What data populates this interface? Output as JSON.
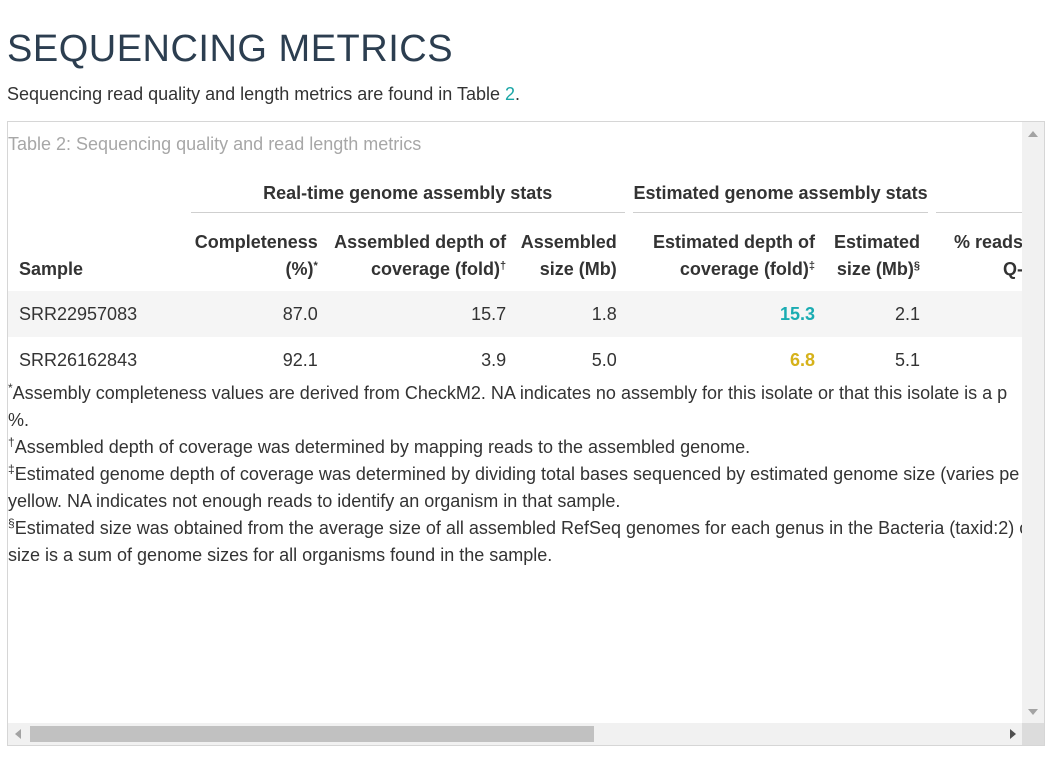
{
  "page": {
    "title": "SEQUENCING METRICS",
    "intro_prefix": "Sequencing read quality and length metrics are found in Table ",
    "intro_ref": "2",
    "intro_suffix": "."
  },
  "table": {
    "caption": "Table 2: Sequencing quality and read length metrics",
    "groups": {
      "realtime": "Real-time genome assembly stats",
      "estimated": "Estimated genome assembly stats"
    },
    "headers": {
      "sample": "Sample",
      "completeness_l1": "Completeness",
      "completeness_l2": "(%)",
      "completeness_mark": "*",
      "assembled_depth_l1": "Assembled depth of",
      "assembled_depth_l2": "coverage (fold)",
      "assembled_depth_mark": "†",
      "assembled_size_l1": "Assembled",
      "assembled_size_l2": "size (Mb)",
      "est_depth_l1": "Estimated depth of",
      "est_depth_l2": "coverage (fold)",
      "est_depth_mark": "‡",
      "est_size_l1": "Estimated",
      "est_size_l2": "size (Mb)",
      "est_size_mark": "§",
      "reads_l1": "% reads",
      "reads_l2": "Q-"
    },
    "rows": [
      {
        "sample": "SRR22957083",
        "completeness": "87.0",
        "assembled_depth": "15.7",
        "assembled_size": "1.8",
        "est_depth": "15.3",
        "est_size": "2.1"
      },
      {
        "sample": "SRR26162843",
        "completeness": "92.1",
        "assembled_depth": "3.9",
        "assembled_size": "5.0",
        "est_depth": "6.8",
        "est_size": "5.1"
      }
    ],
    "highlight_colors": {
      "teal": "#1aacb2",
      "yellow": "#d6b21a"
    }
  },
  "notes": {
    "n1_mark": "*",
    "n1_line1": "Assembly completeness values are derived from CheckM2. NA indicates no assembly for this isolate or that this isolate is a p",
    "n1_line2": "%.",
    "n2_mark": "†",
    "n2_line1": "Assembled depth of coverage was determined by mapping reads to the assembled genome.",
    "n3_mark": "‡",
    "n3_line1": "Estimated genome depth of coverage was determined by dividing total bases sequenced by estimated genome size (varies pe",
    "n3_line2": "yellow. NA indicates not enough reads to identify an organism in that sample.",
    "n4_mark": "§",
    "n4_line1": "Estimated size was obtained from the average size of all assembled RefSeq genomes for each genus in the Bacteria (taxid:2) c",
    "n4_line2": "size is a sum of genome sizes for all organisms found in the sample."
  }
}
